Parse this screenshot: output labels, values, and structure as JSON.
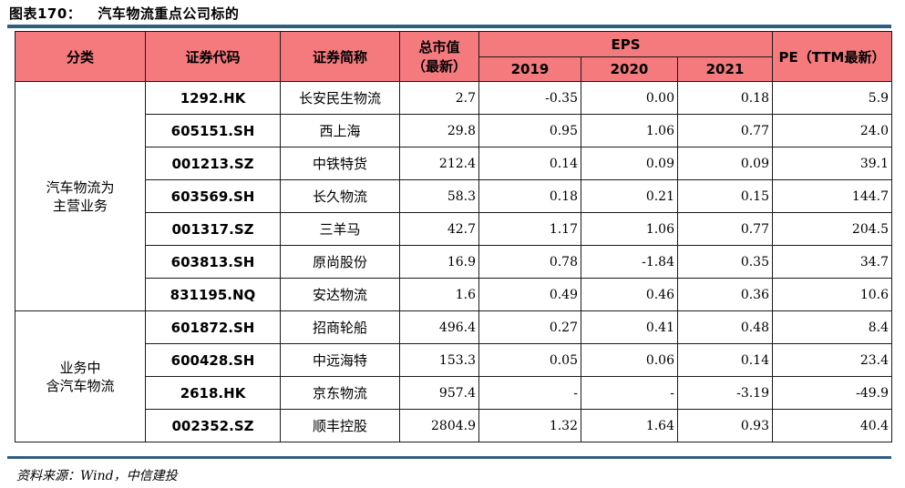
{
  "title": {
    "label": "图表170：",
    "text": "汽车物流重点公司标的"
  },
  "headers": {
    "category": "分类",
    "code": "证券代码",
    "name": "证券简称",
    "mktcap_line1": "总市值",
    "mktcap_line2": "（最新）",
    "eps": "EPS",
    "y2019": "2019",
    "y2020": "2020",
    "y2021": "2021",
    "pe": "PE（TTM最新）"
  },
  "groups": [
    {
      "line1": "汽车物流为",
      "line2": "主营业务"
    },
    {
      "line1": "业务中",
      "line2": "含汽车物流"
    }
  ],
  "rows": [
    {
      "code": "1292.HK",
      "name": "长安民生物流",
      "cap": "2.7",
      "e2019": "-0.35",
      "e2020": "0.00",
      "e2021": "0.18",
      "pe": "5.9"
    },
    {
      "code": "605151.SH",
      "name": "西上海",
      "cap": "29.8",
      "e2019": "0.95",
      "e2020": "1.06",
      "e2021": "0.77",
      "pe": "24.0"
    },
    {
      "code": "001213.SZ",
      "name": "中铁特货",
      "cap": "212.4",
      "e2019": "0.14",
      "e2020": "0.09",
      "e2021": "0.09",
      "pe": "39.1"
    },
    {
      "code": "603569.SH",
      "name": "长久物流",
      "cap": "58.3",
      "e2019": "0.18",
      "e2020": "0.21",
      "e2021": "0.15",
      "pe": "144.7"
    },
    {
      "code": "001317.SZ",
      "name": "三羊马",
      "cap": "42.7",
      "e2019": "1.17",
      "e2020": "1.06",
      "e2021": "0.77",
      "pe": "204.5"
    },
    {
      "code": "603813.SH",
      "name": "原尚股份",
      "cap": "16.9",
      "e2019": "0.78",
      "e2020": "-1.84",
      "e2021": "0.35",
      "pe": "34.7"
    },
    {
      "code": "831195.NQ",
      "name": "安达物流",
      "cap": "1.6",
      "e2019": "0.49",
      "e2020": "0.46",
      "e2021": "0.36",
      "pe": "10.6"
    },
    {
      "code": "601872.SH",
      "name": "招商轮船",
      "cap": "496.4",
      "e2019": "0.27",
      "e2020": "0.41",
      "e2021": "0.48",
      "pe": "8.4"
    },
    {
      "code": "600428.SH",
      "name": "中远海特",
      "cap": "153.3",
      "e2019": "0.05",
      "e2020": "0.06",
      "e2021": "0.14",
      "pe": "23.4"
    },
    {
      "code": "2618.HK",
      "name": "京东物流",
      "cap": "957.4",
      "e2019": "-",
      "e2020": "-",
      "e2021": "-3.19",
      "pe": "-49.9"
    },
    {
      "code": "002352.SZ",
      "name": "顺丰控股",
      "cap": "2804.9",
      "e2019": "1.32",
      "e2020": "1.64",
      "e2021": "0.93",
      "pe": "40.4"
    }
  ],
  "source": "资料来源：Wind，中信建投",
  "colors": {
    "header_bg": "#f47a7e",
    "rule": "#2f5d7f"
  }
}
